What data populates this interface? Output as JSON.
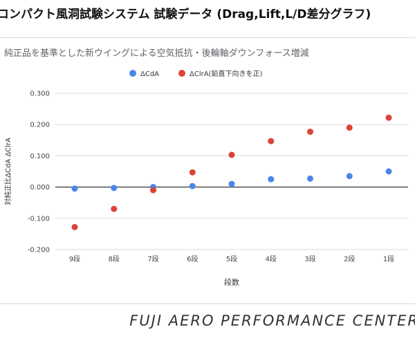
{
  "page": {
    "title": "コンパクト風洞試験システム 試験データ (Drag,Lift,L/D差分グラフ)",
    "footer": "FUJI AERO PERFORMANCE CENTER"
  },
  "chart_data": {
    "type": "scatter",
    "title": "",
    "subtitle": "純正品を基準とした新ウイングによる空気抵抗・後輪軸ダウンフォース増減",
    "xlabel": "段数",
    "ylabel": "対純正比ΔCdA ΔClrA",
    "categories": [
      "9段",
      "8段",
      "7段",
      "6段",
      "5段",
      "4段",
      "3段",
      "2段",
      "1段"
    ],
    "ylim": [
      -0.2,
      0.3
    ],
    "yticks": [
      "-0.200",
      "-0.100",
      "0.000",
      "0.100",
      "0.200",
      "0.300"
    ],
    "ytick_values": [
      -0.2,
      -0.1,
      0,
      0.1,
      0.2,
      0.3
    ],
    "grid": true,
    "legend_position": "top",
    "series": [
      {
        "name": "ΔCdA",
        "color": "#4a86e8",
        "values": [
          -0.005,
          -0.003,
          0.0,
          0.003,
          0.01,
          0.025,
          0.027,
          0.035,
          0.05
        ]
      },
      {
        "name": "ΔClrA(鉛直下向きを正)",
        "color": "#db4437",
        "values": [
          -0.128,
          -0.07,
          -0.01,
          0.047,
          0.103,
          0.147,
          0.177,
          0.19,
          0.222
        ]
      }
    ]
  }
}
